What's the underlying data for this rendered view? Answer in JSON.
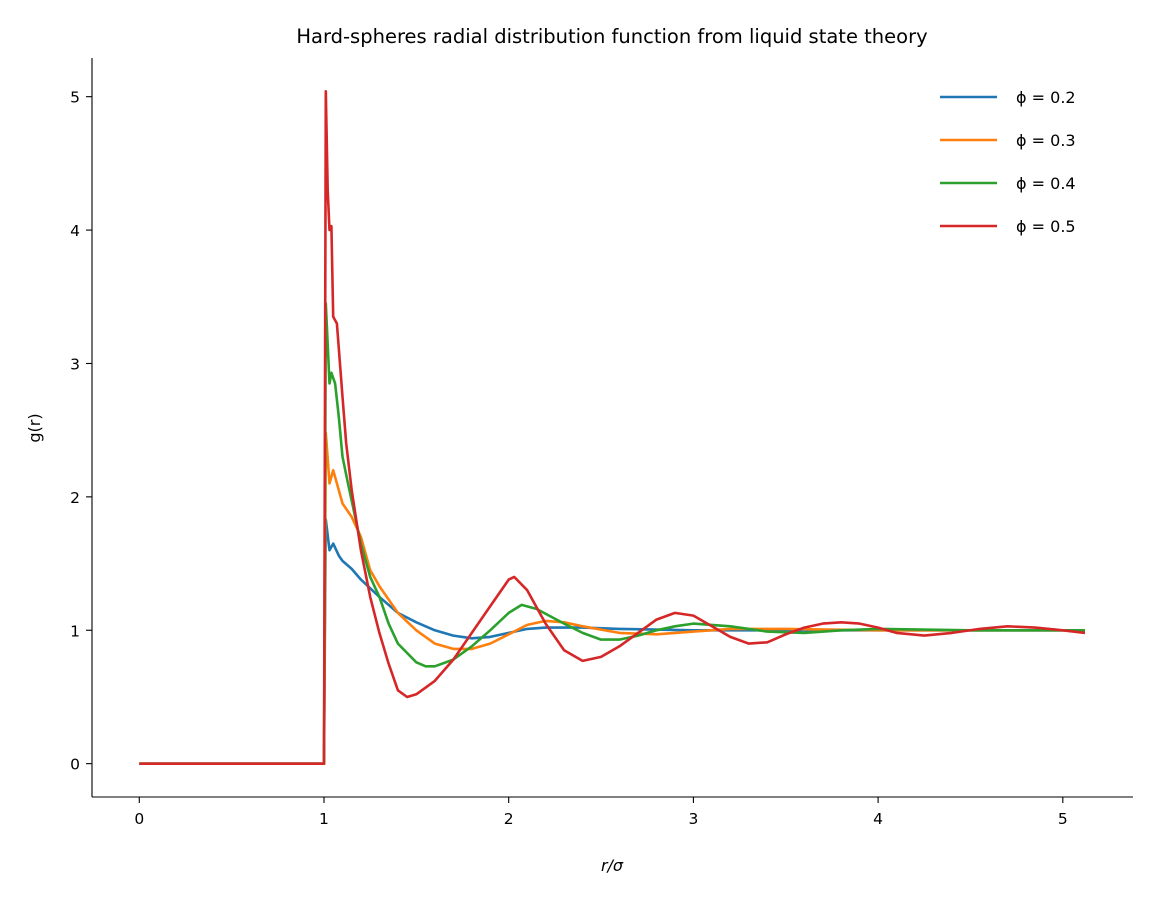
{
  "chart_data": {
    "type": "line",
    "title": "Hard-spheres radial distribution function from liquid state theory",
    "xlabel": "r/σ",
    "ylabel": "g(r)",
    "xlim": [
      -0.256,
      5.38
    ],
    "ylim": [
      -0.25,
      5.29
    ],
    "xticks": [
      0,
      1,
      2,
      3,
      4,
      5
    ],
    "yticks": [
      0,
      1,
      2,
      3,
      4,
      5
    ],
    "legend_position": "top-right",
    "grid": false,
    "series": [
      {
        "name": "ϕ = 0.2",
        "color": "#1f77b4",
        "x": [
          0,
          1,
          1.005,
          1.01,
          1.03,
          1.05,
          1.08,
          1.1,
          1.15,
          1.2,
          1.3,
          1.4,
          1.5,
          1.6,
          1.7,
          1.8,
          1.9,
          2.0,
          2.1,
          2.2,
          2.4,
          2.6,
          3.0,
          5.12
        ],
        "y": [
          0,
          0,
          1.0,
          1.83,
          1.6,
          1.65,
          1.56,
          1.52,
          1.46,
          1.38,
          1.25,
          1.13,
          1.06,
          1.0,
          0.96,
          0.94,
          0.95,
          0.98,
          1.01,
          1.02,
          1.02,
          1.01,
          1.0,
          1.0
        ]
      },
      {
        "name": "ϕ = 0.3",
        "color": "#ff7f0e",
        "x": [
          0,
          1,
          1.005,
          1.01,
          1.03,
          1.05,
          1.08,
          1.1,
          1.15,
          1.2,
          1.25,
          1.3,
          1.4,
          1.5,
          1.6,
          1.7,
          1.8,
          1.9,
          2.0,
          2.1,
          2.2,
          2.3,
          2.4,
          2.6,
          2.8,
          3.0,
          3.2,
          3.5,
          4.0,
          5.12
        ],
        "y": [
          0,
          0,
          1.2,
          2.48,
          2.1,
          2.2,
          2.05,
          1.95,
          1.85,
          1.7,
          1.45,
          1.33,
          1.13,
          1.0,
          0.9,
          0.86,
          0.86,
          0.9,
          0.97,
          1.04,
          1.07,
          1.06,
          1.03,
          0.98,
          0.97,
          0.99,
          1.01,
          1.01,
          1.0,
          1.0
        ]
      },
      {
        "name": "ϕ = 0.4",
        "color": "#2ca02c",
        "x": [
          0,
          1,
          1.005,
          1.01,
          1.03,
          1.04,
          1.06,
          1.08,
          1.1,
          1.13,
          1.2,
          1.25,
          1.3,
          1.35,
          1.4,
          1.5,
          1.55,
          1.6,
          1.7,
          1.8,
          1.9,
          2.0,
          2.07,
          2.15,
          2.3,
          2.4,
          2.5,
          2.6,
          2.7,
          2.8,
          2.9,
          3.0,
          3.2,
          3.4,
          3.6,
          3.8,
          4.0,
          4.5,
          5.12
        ],
        "y": [
          0,
          0,
          1.7,
          3.45,
          2.85,
          2.93,
          2.85,
          2.6,
          2.3,
          2.1,
          1.65,
          1.4,
          1.25,
          1.05,
          0.9,
          0.76,
          0.73,
          0.73,
          0.78,
          0.88,
          1.0,
          1.13,
          1.19,
          1.16,
          1.05,
          0.98,
          0.93,
          0.93,
          0.96,
          1.0,
          1.03,
          1.05,
          1.03,
          0.99,
          0.98,
          1.0,
          1.01,
          1.0,
          1.0
        ]
      },
      {
        "name": "ϕ = 0.5",
        "color": "#d62728",
        "x": [
          0,
          1,
          1.005,
          1.01,
          1.02,
          1.03,
          1.04,
          1.05,
          1.07,
          1.1,
          1.12,
          1.15,
          1.2,
          1.25,
          1.3,
          1.35,
          1.4,
          1.45,
          1.5,
          1.6,
          1.7,
          1.8,
          1.9,
          2.0,
          2.03,
          2.1,
          2.2,
          2.3,
          2.4,
          2.5,
          2.6,
          2.7,
          2.8,
          2.9,
          3.0,
          3.1,
          3.2,
          3.3,
          3.4,
          3.5,
          3.6,
          3.7,
          3.8,
          3.9,
          4.0,
          4.1,
          4.25,
          4.4,
          4.55,
          4.7,
          4.85,
          5.0,
          5.12
        ],
        "y": [
          0,
          0,
          2.5,
          5.04,
          4.3,
          4.0,
          4.03,
          3.35,
          3.3,
          2.75,
          2.4,
          2.05,
          1.6,
          1.25,
          0.98,
          0.75,
          0.55,
          0.5,
          0.52,
          0.62,
          0.78,
          0.98,
          1.18,
          1.38,
          1.4,
          1.3,
          1.05,
          0.85,
          0.77,
          0.8,
          0.88,
          0.98,
          1.08,
          1.13,
          1.11,
          1.03,
          0.95,
          0.9,
          0.91,
          0.97,
          1.02,
          1.05,
          1.06,
          1.05,
          1.02,
          0.98,
          0.96,
          0.98,
          1.01,
          1.03,
          1.02,
          1.0,
          0.98
        ]
      }
    ]
  }
}
